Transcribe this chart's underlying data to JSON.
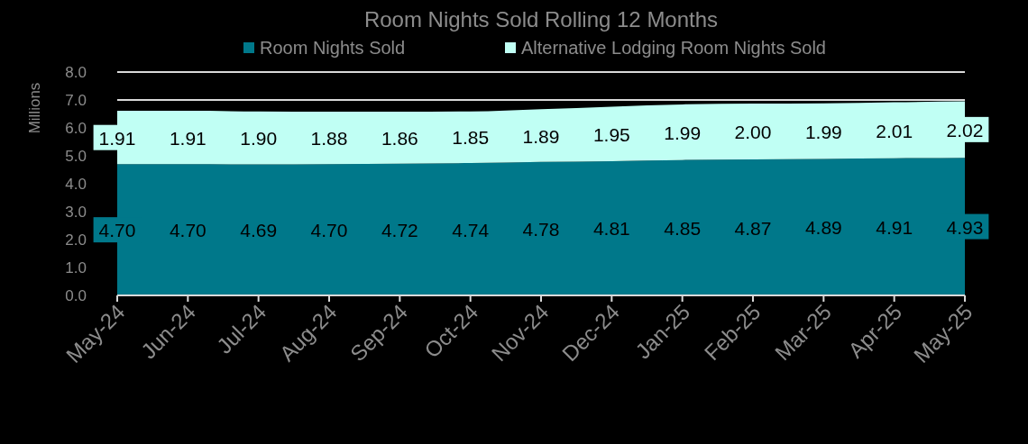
{
  "chart_data": {
    "type": "area",
    "title": "Room Nights Sold Rolling  12 Months",
    "ylabel": "Millions",
    "categories": [
      "May-24",
      "Jun-24",
      "Jul-24",
      "Aug-24",
      "Sep-24",
      "Oct-24",
      "Nov-24",
      "Dec-24",
      "Jan-25",
      "Feb-25",
      "Mar-25",
      "Apr-25",
      "May-25"
    ],
    "stacked": true,
    "series": [
      {
        "name": "Room Nights Sold",
        "color": "#00788a",
        "values": [
          4.7,
          4.7,
          4.69,
          4.7,
          4.72,
          4.74,
          4.78,
          4.81,
          4.85,
          4.87,
          4.89,
          4.91,
          4.93
        ],
        "value_labels": [
          "4.70",
          "4.70",
          "4.69",
          "4.70",
          "4.72",
          "4.74",
          "4.78",
          "4.81",
          "4.85",
          "4.87",
          "4.89",
          "4.91",
          "4.93"
        ]
      },
      {
        "name": "Alternative Lodging Room Nights Sold",
        "color": "#c0fff4",
        "values": [
          1.91,
          1.91,
          1.9,
          1.88,
          1.86,
          1.85,
          1.89,
          1.95,
          1.99,
          2.0,
          1.99,
          2.01,
          2.02
        ],
        "value_labels": [
          "1.91",
          "1.91",
          "1.90",
          "1.88",
          "1.86",
          "1.85",
          "1.89",
          "1.95",
          "1.99",
          "2.00",
          "1.99",
          "2.01",
          "2.02"
        ]
      }
    ],
    "ylim": [
      0,
      8
    ],
    "yticks": [
      {
        "value": 0,
        "label": "0.0"
      },
      {
        "value": 1,
        "label": "1.0"
      },
      {
        "value": 2,
        "label": "2.0"
      },
      {
        "value": 3,
        "label": "3.0"
      },
      {
        "value": 4,
        "label": "4.0"
      },
      {
        "value": 5,
        "label": "5.0"
      },
      {
        "value": 6,
        "label": "6.0"
      },
      {
        "value": 7,
        "label": "7.0"
      },
      {
        "value": 8,
        "label": "8.0"
      }
    ],
    "grid": "y",
    "legend": "top"
  }
}
